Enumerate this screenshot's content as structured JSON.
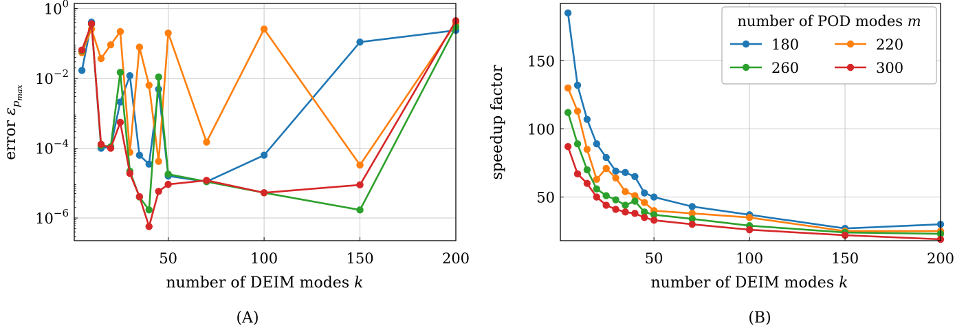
{
  "colors": {
    "blue": "#1f77b4",
    "orange": "#ff7f0e",
    "green": "#2ca02c",
    "red": "#d62728"
  },
  "chart_data": [
    {
      "type": "line",
      "panel_label": "(A)",
      "xlabel_text": "number of DEIM modes",
      "xlabel_var": "k",
      "ylabel_text": "error",
      "ylabel_sym": "ε",
      "ylabel_sub": "p",
      "ylabel_subsub": "max",
      "yscale": "log",
      "xlim": [
        1,
        200
      ],
      "ylim_log10": [
        -6.65,
        0.15
      ],
      "xticks": [
        50,
        100,
        150,
        200
      ],
      "xtick_labels": [
        "50",
        "100",
        "150",
        "200"
      ],
      "yticks_log10": [
        0,
        -2,
        -4,
        -6
      ],
      "ytick_labels": [
        {
          "base": "10",
          "exp": "0"
        },
        {
          "base": "10",
          "exp": "−2"
        },
        {
          "base": "10",
          "exp": "−4"
        },
        {
          "base": "10",
          "exp": "−6"
        }
      ],
      "grid": true,
      "series": [
        {
          "color_key": "blue",
          "x": [
            5,
            10,
            15,
            20,
            25,
            30,
            35,
            40,
            45,
            50,
            70,
            100,
            150,
            200
          ],
          "y": [
            0.017,
            0.41,
            0.0001,
            0.00011,
            0.0021,
            0.012,
            6.3e-05,
            3.5e-05,
            0.0049,
            1.6e-05,
            1.1e-05,
            6.3e-05,
            0.11,
            0.24
          ]
        },
        {
          "color_key": "orange",
          "x": [
            5,
            10,
            15,
            20,
            25,
            30,
            35,
            40,
            45,
            50,
            70,
            100,
            150,
            200
          ],
          "y": [
            0.055,
            0.26,
            0.037,
            0.092,
            0.22,
            7.6e-05,
            0.079,
            0.0064,
            4.2e-05,
            0.2,
            0.00015,
            0.26,
            3.3e-05,
            0.38
          ]
        },
        {
          "color_key": "green",
          "x": [
            5,
            10,
            15,
            20,
            25,
            30,
            35,
            40,
            45,
            50,
            70,
            100,
            150,
            200
          ],
          "y": [
            0.062,
            0.36,
            0.00012,
            0.00011,
            0.015,
            2.2e-05,
            4e-06,
            1.7e-06,
            0.011,
            1.8e-05,
            1.1e-05,
            5.3e-06,
            1.7e-06,
            0.3
          ]
        },
        {
          "color_key": "red",
          "x": [
            5,
            10,
            15,
            20,
            25,
            30,
            35,
            40,
            45,
            50,
            70,
            100,
            150,
            200
          ],
          "y": [
            0.065,
            0.37,
            0.00013,
            0.0001,
            0.00055,
            1.9e-05,
            4.1e-06,
            5.7e-07,
            5.8e-06,
            9.2e-06,
            1.2e-05,
            5.3e-06,
            8.9e-06,
            0.45
          ]
        }
      ]
    },
    {
      "type": "line",
      "panel_label": "(B)",
      "xlabel_text": "number of DEIM modes",
      "xlabel_var": "k",
      "ylabel": "speedup factor",
      "xlim": [
        1,
        200
      ],
      "ylim": [
        18,
        192
      ],
      "xticks": [
        50,
        100,
        150,
        200
      ],
      "xtick_labels": [
        "50",
        "100",
        "150",
        "200"
      ],
      "yticks": [
        50,
        100,
        150
      ],
      "ytick_labels": [
        "50",
        "100",
        "150"
      ],
      "grid": true,
      "legend": {
        "title_text": "number of POD modes",
        "title_var": "m",
        "placement": "top-right",
        "entries": [
          {
            "label": "180",
            "color_key": "blue"
          },
          {
            "label": "220",
            "color_key": "orange"
          },
          {
            "label": "260",
            "color_key": "green"
          },
          {
            "label": "300",
            "color_key": "red"
          }
        ]
      },
      "series": [
        {
          "name": "180",
          "color_key": "blue",
          "x": [
            5,
            10,
            15,
            20,
            25,
            30,
            35,
            40,
            45,
            50,
            70,
            100,
            150,
            200
          ],
          "y": [
            185,
            132,
            107,
            89,
            79,
            69,
            68,
            65,
            53,
            50,
            43,
            37,
            27,
            30
          ]
        },
        {
          "name": "220",
          "color_key": "orange",
          "x": [
            5,
            10,
            15,
            20,
            25,
            30,
            35,
            40,
            45,
            50,
            70,
            100,
            150,
            200
          ],
          "y": [
            130,
            113,
            85,
            63,
            71,
            64,
            54,
            51,
            46,
            40,
            38,
            35,
            25,
            25
          ]
        },
        {
          "name": "260",
          "color_key": "green",
          "x": [
            5,
            10,
            15,
            20,
            25,
            30,
            35,
            40,
            45,
            50,
            70,
            100,
            150,
            200
          ],
          "y": [
            112,
            89,
            70,
            56,
            51,
            48,
            44,
            47,
            39,
            37,
            34,
            29,
            24,
            23
          ]
        },
        {
          "name": "300",
          "color_key": "red",
          "x": [
            5,
            10,
            15,
            20,
            25,
            30,
            35,
            40,
            45,
            50,
            70,
            100,
            150,
            200
          ],
          "y": [
            87,
            67,
            60,
            50,
            44,
            41,
            39,
            38,
            35,
            33,
            30,
            26,
            22,
            19
          ]
        }
      ]
    }
  ]
}
